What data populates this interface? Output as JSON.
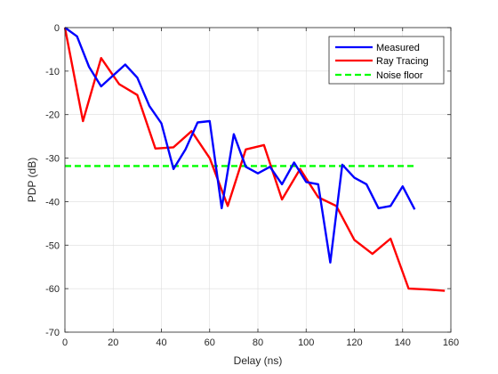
{
  "chart_data": {
    "type": "line",
    "xlabel": "Delay (ns)",
    "ylabel": "PDP (dB)",
    "xlim": [
      0,
      160
    ],
    "ylim": [
      -70,
      0
    ],
    "xticks": [
      0,
      20,
      40,
      60,
      80,
      100,
      120,
      140,
      160
    ],
    "yticks": [
      0,
      -10,
      -20,
      -30,
      -40,
      -50,
      -60,
      -70
    ],
    "xtick_labels": [
      "0",
      "20",
      "40",
      "60",
      "80",
      "100",
      "120",
      "140",
      "160"
    ],
    "ytick_labels": [
      "0",
      "-10",
      "-20",
      "-30",
      "-40",
      "-50",
      "-60",
      "-70"
    ],
    "grid": true,
    "legend_position": "top-right",
    "series": [
      {
        "name": "Measured",
        "color": "#0000ff",
        "dash": "solid",
        "x": [
          0,
          5,
          10,
          15,
          20,
          25,
          30,
          35,
          40,
          45,
          50,
          55,
          60,
          65,
          70,
          75,
          80,
          85,
          90,
          95,
          100,
          105,
          110,
          115,
          120,
          125,
          130,
          135,
          140,
          145
        ],
        "y": [
          0,
          -2,
          -9,
          -13.5,
          -11,
          -8.5,
          -11.5,
          -18,
          -22,
          -32.5,
          -28,
          -21.8,
          -21.5,
          -41.5,
          -24.5,
          -32,
          -33.5,
          -32,
          -36,
          -31,
          -35.5,
          -36,
          -54,
          -31.5,
          -34.5,
          -36,
          -41.5,
          -41,
          -36.5,
          -41.8
        ]
      },
      {
        "name": "Ray Tracing",
        "color": "#ff0000",
        "dash": "solid",
        "x": [
          0,
          7.5,
          15,
          22.5,
          30,
          37.5,
          45,
          52.5,
          60,
          67.5,
          75,
          82.5,
          90,
          97.5,
          105,
          112.5,
          120,
          127.5,
          135,
          142.5,
          150,
          157.5
        ],
        "y": [
          0,
          -21.5,
          -7,
          -13,
          -15.5,
          -27.8,
          -27.5,
          -23.8,
          -30,
          -41,
          -28,
          -27,
          -39.5,
          -32.5,
          -39,
          -41,
          -48.8,
          -52,
          -48.5,
          -60,
          -60.2,
          -60.5
        ]
      },
      {
        "name": "Noise floor",
        "color": "#00ff00",
        "dash": "dashed",
        "x": [
          0,
          145
        ],
        "y": [
          -31.8,
          -31.8
        ]
      }
    ]
  }
}
